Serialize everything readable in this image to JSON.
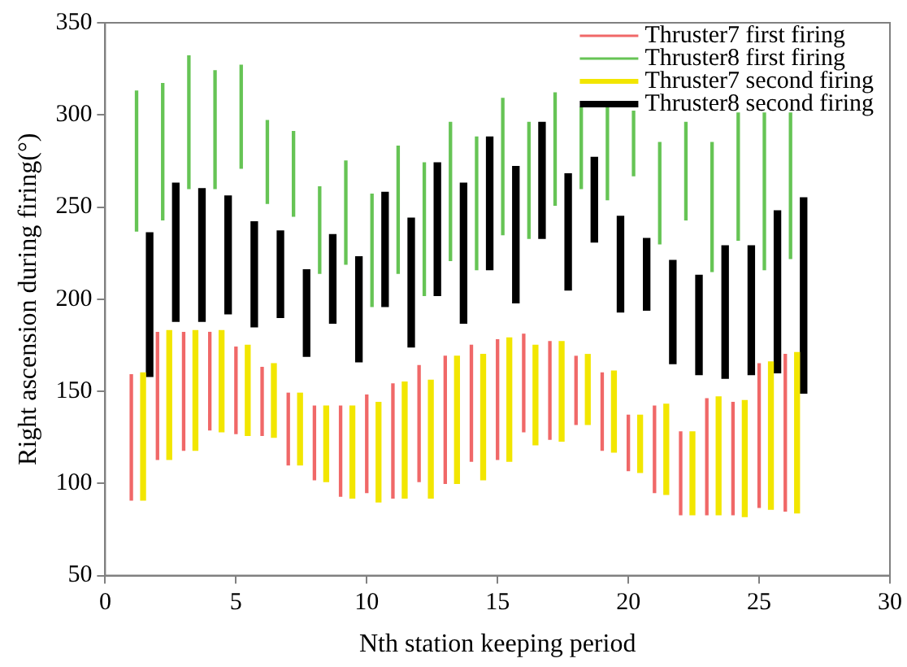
{
  "chart_data": {
    "type": "bar",
    "xlabel": "Nth station keeping period",
    "ylabel": "Right ascension during firing(°)",
    "xlim": [
      0,
      30
    ],
    "xticks": [
      0,
      5,
      10,
      15,
      20,
      25,
      30
    ],
    "ylim": [
      50,
      350
    ],
    "yticks": [
      50,
      100,
      150,
      200,
      250,
      300,
      350
    ],
    "grid": false,
    "legend": "top right",
    "series": [
      {
        "name": "Thruster7 first firing",
        "color": "#f06868",
        "x": [
          1,
          2,
          3,
          4,
          5,
          6,
          7,
          8,
          9,
          10,
          11,
          12,
          13,
          14,
          15,
          16,
          17,
          18,
          19,
          20,
          21,
          22,
          23,
          24,
          25,
          26
        ],
        "base": [
          91,
          113,
          118,
          129,
          127,
          126,
          110,
          102,
          93,
          95,
          92,
          101,
          100,
          112,
          113,
          128,
          124,
          132,
          118,
          107,
          95,
          83,
          83,
          83,
          87,
          85
        ],
        "values": [
          68,
          69,
          64,
          53,
          47,
          37,
          39,
          40,
          49,
          53,
          62,
          63,
          69,
          63,
          65,
          53,
          53,
          37,
          42,
          30,
          47,
          45,
          63,
          61,
          78,
          85
        ]
      },
      {
        "name": "Thruster8 first firing",
        "color": "#66c455",
        "x": [
          1.2,
          2.2,
          3.2,
          4.2,
          5.2,
          6.2,
          7.2,
          8.2,
          9.2,
          10.2,
          11.2,
          12.2,
          13.2,
          14.2,
          15.2,
          16.2,
          17.2,
          18.2,
          19.2,
          20.2,
          21.2,
          22.2,
          23.2,
          24.2,
          25.2,
          26.2
        ],
        "base": [
          237,
          243,
          260,
          260,
          271,
          252,
          245,
          214,
          219,
          196,
          214,
          202,
          221,
          216,
          235,
          233,
          251,
          260,
          254,
          267,
          230,
          243,
          215,
          232,
          216,
          222
        ],
        "values": [
          76,
          74,
          72,
          64,
          56,
          45,
          46,
          47,
          56,
          61,
          69,
          72,
          75,
          72,
          74,
          63,
          61,
          44,
          50,
          35,
          55,
          53,
          70,
          69,
          85,
          79
        ]
      },
      {
        "name": "Thruster7 second firing",
        "color": "#f2e600",
        "x": [
          1.45,
          2.45,
          3.45,
          4.45,
          5.45,
          6.45,
          7.45,
          8.45,
          9.45,
          10.45,
          11.45,
          12.45,
          13.45,
          14.45,
          15.45,
          16.45,
          17.45,
          18.45,
          19.45,
          20.45,
          21.45,
          22.45,
          23.45,
          24.45,
          25.45,
          26.45
        ],
        "base": [
          91,
          113,
          118,
          128,
          126,
          125,
          110,
          101,
          92,
          90,
          92,
          92,
          100,
          102,
          112,
          121,
          123,
          132,
          117,
          106,
          94,
          83,
          83,
          82,
          86,
          84
        ],
        "values": [
          69,
          70,
          65,
          55,
          49,
          40,
          39,
          41,
          50,
          54,
          63,
          64,
          69,
          68,
          67,
          54,
          54,
          38,
          44,
          31,
          49,
          45,
          64,
          63,
          80,
          87
        ]
      },
      {
        "name": "Thruster8 second firing",
        "color": "#000000",
        "x": [
          1.7,
          2.7,
          3.7,
          4.7,
          5.7,
          6.7,
          7.7,
          8.7,
          9.7,
          10.7,
          11.7,
          12.7,
          13.7,
          14.7,
          15.7,
          16.7,
          17.7,
          18.7,
          19.7,
          20.7,
          21.7,
          22.7,
          23.7,
          24.7,
          25.7,
          26.7
        ],
        "base": [
          158,
          188,
          188,
          192,
          185,
          190,
          169,
          187,
          166,
          196,
          174,
          202,
          187,
          216,
          198,
          233,
          205,
          231,
          193,
          194,
          165,
          159,
          157,
          159,
          160,
          149
        ],
        "values": [
          78,
          75,
          72,
          64,
          57,
          47,
          47,
          48,
          57,
          62,
          70,
          72,
          76,
          72,
          74,
          63,
          63,
          46,
          52,
          39,
          56,
          54,
          72,
          70,
          88,
          106
        ]
      }
    ]
  }
}
